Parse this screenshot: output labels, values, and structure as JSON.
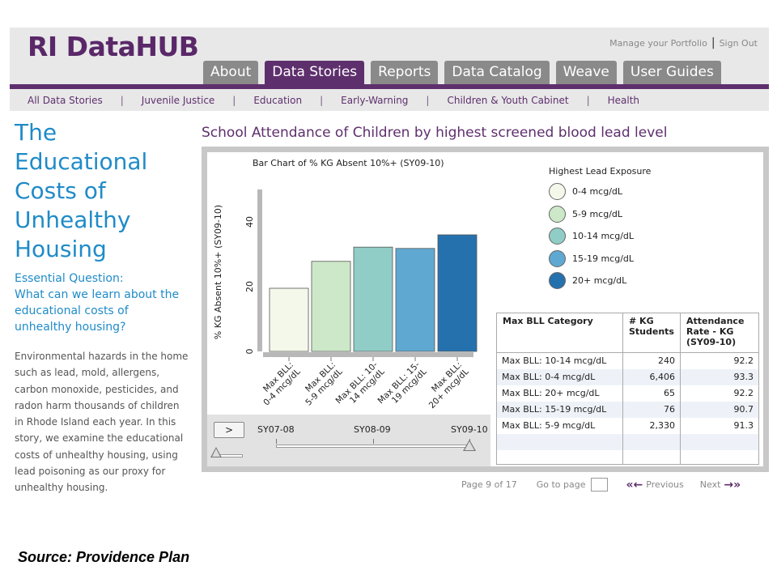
{
  "header": {
    "logo": "RI DataHUB",
    "utility_links": [
      "Manage your Portfolio",
      "Sign Out"
    ],
    "tabs": [
      {
        "label": "About",
        "active": false
      },
      {
        "label": "Data Stories",
        "active": true
      },
      {
        "label": "Reports",
        "active": false
      },
      {
        "label": "Data Catalog",
        "active": false
      },
      {
        "label": "Weave",
        "active": false
      },
      {
        "label": "User Guides",
        "active": false
      }
    ],
    "subnav": [
      "All Data Stories",
      "Juvenile Justice",
      "Education",
      "Early-Warning",
      "Children & Youth Cabinet",
      "Health"
    ]
  },
  "story": {
    "title_lines": [
      "The",
      "Educational",
      "Costs of",
      "Unhealthy",
      "Housing"
    ],
    "question_title": "Essential Question:",
    "question_text": "What can we learn about the educational costs of unhealthy housing?",
    "body": "Environmental hazards in the home such as lead, mold, allergens, carbon monoxide, pesticides, and radon harm thousands of children in Rhode Island each year. In this story, we examine the educational costs of unhealthy housing, using lead poisoning as our proxy for unhealthy housing."
  },
  "viz": {
    "title": "School Attendance of Children by highest screened blood lead level"
  },
  "chart_data": {
    "type": "bar",
    "title": "Bar Chart of % KG Absent 10%+ (SY09-10)",
    "ylabel": "% KG Absent 10%+ (SY09-10)",
    "xlabel": "",
    "categories": [
      "Max BLL: 0-4 mcg/dL",
      "Max BLL: 5-9 mcg/dL",
      "Max BLL: 10-14 mcg/dL",
      "Max BLL: 15-19 mcg/dL",
      "Max BLL: 20+ mcg/dL"
    ],
    "category_lines": [
      [
        "Max BLL:",
        "0-4 mcg/dL"
      ],
      [
        "Max BLL:",
        "5-9 mcg/dL"
      ],
      [
        "Max BLL: 10-",
        "14 mcg/dL"
      ],
      [
        "Max BLL: 15-",
        "19 mcg/dL"
      ],
      [
        "Max BLL:",
        "20+ mcg/dL"
      ]
    ],
    "values": [
      19.5,
      27.8,
      32.2,
      31.8,
      36.0
    ],
    "colors": [
      "#f4f8ea",
      "#cde8c8",
      "#90cdc6",
      "#5fa8d1",
      "#2571ae"
    ],
    "yticks": [
      0,
      20,
      40
    ],
    "ylim": [
      0,
      50
    ]
  },
  "legend": {
    "title": "Highest Lead Exposure",
    "items": [
      {
        "label": "0-4 mcg/dL",
        "color": "#f4f8ea"
      },
      {
        "label": "5-9 mcg/dL",
        "color": "#cde8c8"
      },
      {
        "label": "10-14 mcg/dL",
        "color": "#90cdc6"
      },
      {
        "label": "15-19 mcg/dL",
        "color": "#5fa8d1"
      },
      {
        "label": "20+ mcg/dL",
        "color": "#2571ae"
      }
    ]
  },
  "table": {
    "headers": [
      "Max BLL Category",
      "# KG Students",
      "Attendance Rate - KG (SY09-10)"
    ],
    "rows": [
      [
        "Max BLL: 10-14 mcg/dL",
        "240",
        "92.2"
      ],
      [
        "Max BLL: 0-4 mcg/dL",
        "6,406",
        "93.3"
      ],
      [
        "Max BLL: 20+ mcg/dL",
        "65",
        "92.2"
      ],
      [
        "Max BLL: 15-19 mcg/dL",
        "76",
        "90.7"
      ],
      [
        "Max BLL: 5-9 mcg/dL",
        "2,330",
        "91.3"
      ]
    ]
  },
  "controls": {
    "play_label": ">",
    "years": [
      "SY07-08",
      "SY08-09",
      "SY09-10"
    ]
  },
  "pager": {
    "page_text": "Page 9 of 17",
    "goto_label": "Go to page",
    "prev_label": "Previous",
    "next_label": "Next",
    "prev_icon": "«←",
    "next_icon": "→»"
  },
  "source": "Source: Providence Plan"
}
